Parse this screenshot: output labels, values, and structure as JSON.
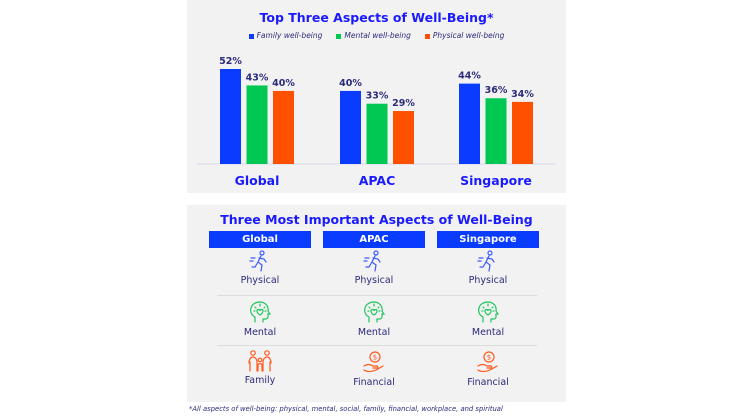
{
  "chart_data": {
    "type": "bar",
    "title": "Top Three Aspects of Well-Being*",
    "categories": [
      "Global",
      "APAC",
      "Singapore"
    ],
    "series": [
      {
        "name": "Family well-being",
        "color": "#0a3cff",
        "values": [
          52,
          40,
          44
        ]
      },
      {
        "name": "Mental well-being",
        "color": "#00c853",
        "values": [
          43,
          33,
          36
        ]
      },
      {
        "name": "Physical well-being",
        "color": "#ff5000",
        "values": [
          40,
          29,
          34
        ]
      }
    ],
    "value_suffix": "%",
    "ylim": [
      0,
      55
    ],
    "grid": false,
    "legend": "top"
  },
  "table": {
    "title": "Three Most Important Aspects of Well-Being",
    "columns": [
      {
        "header": "Global",
        "items": [
          {
            "label": "Physical",
            "icon": "running-person-icon"
          },
          {
            "label": "Mental",
            "icon": "head-heart-icon"
          },
          {
            "label": "Family",
            "icon": "family-icon"
          }
        ]
      },
      {
        "header": "APAC",
        "items": [
          {
            "label": "Physical",
            "icon": "running-person-icon"
          },
          {
            "label": "Mental",
            "icon": "head-heart-icon"
          },
          {
            "label": "Financial",
            "icon": "hand-coin-icon"
          }
        ]
      },
      {
        "header": "Singapore",
        "items": [
          {
            "label": "Physical",
            "icon": "running-person-icon"
          },
          {
            "label": "Mental",
            "icon": "head-heart-icon"
          },
          {
            "label": "Financial",
            "icon": "hand-coin-icon"
          }
        ]
      }
    ]
  },
  "footnote": "*All aspects of well-being: physical, mental, social, family, financial, workplace, and spiritual"
}
